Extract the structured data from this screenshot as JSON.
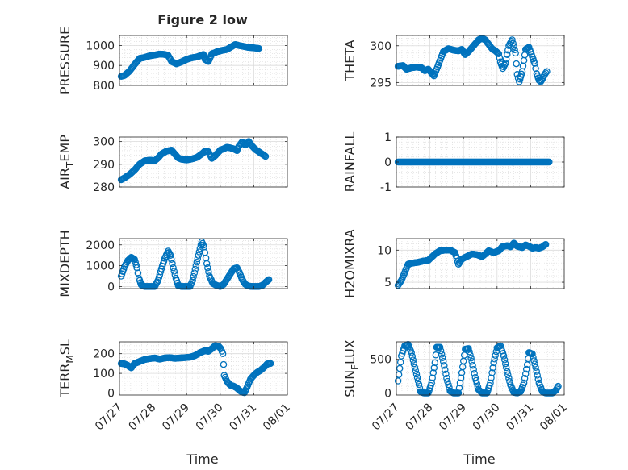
{
  "figure": {
    "title": "Figure 2 low",
    "xlabel": "Time"
  },
  "chart_data": [
    {
      "type": "scatter",
      "ylabel": "PRESSURE",
      "ylim": [
        800,
        1050
      ],
      "yticks": [
        {
          "v": 800,
          "label": "800"
        },
        {
          "v": 900,
          "label": "900"
        },
        {
          "v": 1000,
          "label": "1000"
        }
      ],
      "xlim": [
        0,
        5
      ],
      "xticks": [
        "07/27",
        "07/28",
        "07/29",
        "07/30",
        "07/31",
        "08/01"
      ],
      "grid": "on",
      "key": [
        [
          0.05,
          845
        ],
        [
          0.15,
          850
        ],
        [
          0.3,
          872
        ],
        [
          0.45,
          905
        ],
        [
          0.6,
          935
        ],
        [
          0.75,
          940
        ],
        [
          0.9,
          948
        ],
        [
          1.05,
          952
        ],
        [
          1.2,
          957
        ],
        [
          1.35,
          955
        ],
        [
          1.45,
          950
        ],
        [
          1.55,
          920
        ],
        [
          1.7,
          908
        ],
        [
          1.85,
          918
        ],
        [
          2.0,
          930
        ],
        [
          2.15,
          938
        ],
        [
          2.3,
          942
        ],
        [
          2.4,
          948
        ],
        [
          2.5,
          955
        ],
        [
          2.55,
          930
        ],
        [
          2.65,
          920
        ],
        [
          2.75,
          958
        ],
        [
          2.9,
          968
        ],
        [
          3.05,
          975
        ],
        [
          3.2,
          980
        ],
        [
          3.3,
          990
        ],
        [
          3.45,
          1005
        ],
        [
          3.55,
          1000
        ],
        [
          3.7,
          995
        ],
        [
          3.85,
          990
        ],
        [
          4.0,
          988
        ],
        [
          4.15,
          985
        ]
      ]
    },
    {
      "type": "scatter",
      "ylabel": "THETA",
      "ylim": [
        294.6,
        301.4
      ],
      "yticks": [
        {
          "v": 295,
          "label": "295"
        },
        {
          "v": 300,
          "label": "300"
        }
      ],
      "xlim": [
        0,
        5
      ],
      "xticks": [
        "07/27",
        "07/28",
        "07/29",
        "07/30",
        "07/31",
        "08/01"
      ],
      "grid": "on",
      "key": [
        [
          0.05,
          297.2
        ],
        [
          0.2,
          297.3
        ],
        [
          0.3,
          296.8
        ],
        [
          0.45,
          297.0
        ],
        [
          0.6,
          297.1
        ],
        [
          0.75,
          297.0
        ],
        [
          0.85,
          296.6
        ],
        [
          0.95,
          296.8
        ],
        [
          1.05,
          296.3
        ],
        [
          1.12,
          295.9
        ],
        [
          1.2,
          296.8
        ],
        [
          1.3,
          298.0
        ],
        [
          1.4,
          299.2
        ],
        [
          1.55,
          299.6
        ],
        [
          1.7,
          299.4
        ],
        [
          1.85,
          299.3
        ],
        [
          1.95,
          299.5
        ],
        [
          2.05,
          298.8
        ],
        [
          2.15,
          299.2
        ],
        [
          2.3,
          300.0
        ],
        [
          2.45,
          300.8
        ],
        [
          2.55,
          301.0
        ],
        [
          2.65,
          300.8
        ],
        [
          2.75,
          300.2
        ],
        [
          2.85,
          299.6
        ],
        [
          2.95,
          299.3
        ],
        [
          3.05,
          298.9
        ],
        [
          3.1,
          297.8
        ],
        [
          3.17,
          296.9
        ],
        [
          3.25,
          297.6
        ],
        [
          3.35,
          300.0
        ],
        [
          3.45,
          300.8
        ],
        [
          3.55,
          299.0
        ],
        [
          3.6,
          296.1
        ],
        [
          3.66,
          295.1
        ],
        [
          3.75,
          296.5
        ],
        [
          3.85,
          299.5
        ],
        [
          3.95,
          299.8
        ],
        [
          4.05,
          298.5
        ],
        [
          4.12,
          297.6
        ],
        [
          4.18,
          296.2
        ],
        [
          4.25,
          295.3
        ],
        [
          4.3,
          295.1
        ],
        [
          4.35,
          295.5
        ],
        [
          4.42,
          296.1
        ],
        [
          4.48,
          296.5
        ]
      ]
    },
    {
      "type": "scatter",
      "ylabel": "AIR_TEMP",
      "ylabel_main": "AIR",
      "ylabel_sub": "T",
      "ylabel_rest": "EMP",
      "ylim": [
        280,
        302
      ],
      "yticks": [
        {
          "v": 280,
          "label": "280"
        },
        {
          "v": 290,
          "label": "290"
        },
        {
          "v": 300,
          "label": "300"
        }
      ],
      "xlim": [
        0,
        5
      ],
      "xticks": [
        "07/27",
        "07/28",
        "07/29",
        "07/30",
        "07/31",
        "08/01"
      ],
      "grid": "on",
      "key": [
        [
          0.05,
          283.2
        ],
        [
          0.15,
          284
        ],
        [
          0.3,
          285.5
        ],
        [
          0.45,
          287.5
        ],
        [
          0.6,
          290
        ],
        [
          0.75,
          291.5
        ],
        [
          0.9,
          291.8
        ],
        [
          1.05,
          291.6
        ],
        [
          1.15,
          292.8
        ],
        [
          1.25,
          294.5
        ],
        [
          1.4,
          295.8
        ],
        [
          1.55,
          296.2
        ],
        [
          1.65,
          294.5
        ],
        [
          1.75,
          292.8
        ],
        [
          1.85,
          292.2
        ],
        [
          2.0,
          291.9
        ],
        [
          2.15,
          292.3
        ],
        [
          2.3,
          293
        ],
        [
          2.45,
          294.5
        ],
        [
          2.55,
          295.9
        ],
        [
          2.65,
          295.5
        ],
        [
          2.75,
          292.6
        ],
        [
          2.85,
          293.8
        ],
        [
          3.0,
          296.2
        ],
        [
          3.1,
          296.8
        ],
        [
          3.2,
          297.5
        ],
        [
          3.3,
          297.2
        ],
        [
          3.4,
          296.8
        ],
        [
          3.5,
          296
        ],
        [
          3.55,
          297.8
        ],
        [
          3.65,
          299.8
        ],
        [
          3.75,
          298.5
        ],
        [
          3.85,
          300
        ],
        [
          3.95,
          298
        ],
        [
          4.05,
          296.5
        ],
        [
          4.15,
          295.5
        ],
        [
          4.25,
          294.5
        ],
        [
          4.35,
          293.5
        ]
      ]
    },
    {
      "type": "scatter",
      "ylabel": "RAINFALL",
      "ylim": [
        -1,
        1
      ],
      "yticks": [
        {
          "v": -1,
          "label": "-1"
        },
        {
          "v": 0,
          "label": "0"
        },
        {
          "v": 1,
          "label": "1"
        }
      ],
      "xlim": [
        0,
        5
      ],
      "xticks": [
        "07/27",
        "07/28",
        "07/29",
        "07/30",
        "07/31",
        "08/01"
      ],
      "grid": "on",
      "key": [
        [
          0.05,
          0
        ],
        [
          4.55,
          0
        ]
      ]
    },
    {
      "type": "scatter",
      "ylabel": "MIXDEPTH",
      "ylim": [
        -100,
        2300
      ],
      "yticks": [
        {
          "v": 0,
          "label": "0"
        },
        {
          "v": 1000,
          "label": "1000"
        },
        {
          "v": 2000,
          "label": "2000"
        }
      ],
      "xlim": [
        0,
        5
      ],
      "xticks": [
        "07/27",
        "07/28",
        "07/29",
        "07/30",
        "07/31",
        "08/01"
      ],
      "grid": "on",
      "key": [
        [
          0.05,
          500
        ],
        [
          0.15,
          950
        ],
        [
          0.25,
          1250
        ],
        [
          0.35,
          1400
        ],
        [
          0.45,
          1300
        ],
        [
          0.52,
          900
        ],
        [
          0.58,
          400
        ],
        [
          0.65,
          80
        ],
        [
          0.75,
          0
        ],
        [
          0.9,
          0
        ],
        [
          1.05,
          0
        ],
        [
          1.15,
          300
        ],
        [
          1.25,
          850
        ],
        [
          1.35,
          1350
        ],
        [
          1.45,
          1700
        ],
        [
          1.52,
          1500
        ],
        [
          1.6,
          900
        ],
        [
          1.68,
          400
        ],
        [
          1.75,
          50
        ],
        [
          1.85,
          0
        ],
        [
          2.0,
          0
        ],
        [
          2.1,
          0
        ],
        [
          2.18,
          300
        ],
        [
          2.28,
          1000
        ],
        [
          2.35,
          1500
        ],
        [
          2.45,
          2150
        ],
        [
          2.52,
          1900
        ],
        [
          2.6,
          1100
        ],
        [
          2.68,
          500
        ],
        [
          2.78,
          150
        ],
        [
          2.9,
          50
        ],
        [
          3.0,
          0
        ],
        [
          3.1,
          100
        ],
        [
          3.2,
          350
        ],
        [
          3.3,
          600
        ],
        [
          3.4,
          850
        ],
        [
          3.5,
          900
        ],
        [
          3.58,
          650
        ],
        [
          3.65,
          350
        ],
        [
          3.75,
          100
        ],
        [
          3.85,
          20
        ],
        [
          3.95,
          0
        ],
        [
          4.05,
          0
        ],
        [
          4.15,
          0
        ],
        [
          4.25,
          50
        ],
        [
          4.35,
          200
        ],
        [
          4.45,
          330
        ]
      ]
    },
    {
      "type": "scatter",
      "ylabel": "H2OMIXRA",
      "ylim": [
        4,
        11.8
      ],
      "yticks": [
        {
          "v": 5,
          "label": "5"
        },
        {
          "v": 10,
          "label": "10"
        }
      ],
      "xlim": [
        0,
        5
      ],
      "xticks": [
        "07/27",
        "07/28",
        "07/29",
        "07/30",
        "07/31",
        "08/01"
      ],
      "grid": "on",
      "key": [
        [
          0.05,
          4.5
        ],
        [
          0.15,
          5.3
        ],
        [
          0.25,
          6.5
        ],
        [
          0.35,
          7.8
        ],
        [
          0.5,
          8
        ],
        [
          0.65,
          8.1
        ],
        [
          0.8,
          8.3
        ],
        [
          0.95,
          8.4
        ],
        [
          1.05,
          8.9
        ],
        [
          1.15,
          9.4
        ],
        [
          1.3,
          9.9
        ],
        [
          1.45,
          10.0
        ],
        [
          1.6,
          10.0
        ],
        [
          1.75,
          9.6
        ],
        [
          1.85,
          7.8
        ],
        [
          1.95,
          8.6
        ],
        [
          2.1,
          9.0
        ],
        [
          2.25,
          9.4
        ],
        [
          2.4,
          9.3
        ],
        [
          2.55,
          9.0
        ],
        [
          2.65,
          9.4
        ],
        [
          2.75,
          9.9
        ],
        [
          2.9,
          9.6
        ],
        [
          3.05,
          9.9
        ],
        [
          3.15,
          10.5
        ],
        [
          3.3,
          10.7
        ],
        [
          3.4,
          10.5
        ],
        [
          3.5,
          11.1
        ],
        [
          3.6,
          10.6
        ],
        [
          3.75,
          10.4
        ],
        [
          3.85,
          10.8
        ],
        [
          3.95,
          10.6
        ],
        [
          4.05,
          10.3
        ],
        [
          4.15,
          10.4
        ],
        [
          4.25,
          10.3
        ],
        [
          4.35,
          10.5
        ],
        [
          4.45,
          10.9
        ]
      ]
    },
    {
      "type": "scatter",
      "ylabel": "TERR_MSL",
      "ylabel_main": "TERR",
      "ylabel_sub": "M",
      "ylabel_rest": "SL",
      "ylim": [
        -10,
        260
      ],
      "yticks": [
        {
          "v": 0,
          "label": "0"
        },
        {
          "v": 100,
          "label": "100"
        },
        {
          "v": 200,
          "label": "200"
        }
      ],
      "xlim": [
        0,
        5
      ],
      "xticks": [
        "07/27",
        "07/28",
        "07/29",
        "07/30",
        "07/31",
        "08/01"
      ],
      "grid": "on",
      "key": [
        [
          0.05,
          150
        ],
        [
          0.15,
          148
        ],
        [
          0.25,
          140
        ],
        [
          0.35,
          128
        ],
        [
          0.45,
          150
        ],
        [
          0.6,
          160
        ],
        [
          0.75,
          170
        ],
        [
          0.9,
          175
        ],
        [
          1.05,
          178
        ],
        [
          1.2,
          172
        ],
        [
          1.35,
          178
        ],
        [
          1.5,
          180
        ],
        [
          1.65,
          176
        ],
        [
          1.8,
          178
        ],
        [
          1.95,
          180
        ],
        [
          2.1,
          182
        ],
        [
          2.25,
          190
        ],
        [
          2.4,
          205
        ],
        [
          2.55,
          215
        ],
        [
          2.65,
          212
        ],
        [
          2.75,
          225
        ],
        [
          2.85,
          240
        ],
        [
          2.95,
          238
        ],
        [
          3.02,
          225
        ],
        [
          3.08,
          200
        ],
        [
          3.12,
          90
        ],
        [
          3.2,
          60
        ],
        [
          3.3,
          40
        ],
        [
          3.4,
          35
        ],
        [
          3.5,
          25
        ],
        [
          3.6,
          10
        ],
        [
          3.65,
          5
        ],
        [
          3.72,
          2
        ],
        [
          3.8,
          30
        ],
        [
          3.9,
          70
        ],
        [
          4.0,
          90
        ],
        [
          4.1,
          105
        ],
        [
          4.2,
          115
        ],
        [
          4.3,
          130
        ],
        [
          4.4,
          148
        ],
        [
          4.5,
          150
        ]
      ]
    },
    {
      "type": "scatter",
      "ylabel": "SUN_FLUX",
      "ylabel_main": "SUN",
      "ylabel_sub": "F",
      "ylabel_rest": "LUX",
      "ylim": [
        -30,
        760
      ],
      "yticks": [
        {
          "v": 0,
          "label": "0"
        },
        {
          "v": 500,
          "label": "500"
        }
      ],
      "xlim": [
        0,
        5
      ],
      "xticks": [
        "07/27",
        "07/28",
        "07/29",
        "07/30",
        "07/31",
        "08/01"
      ],
      "grid": "on",
      "key": [
        [
          0.05,
          180
        ],
        [
          0.15,
          550
        ],
        [
          0.25,
          700
        ],
        [
          0.35,
          720
        ],
        [
          0.45,
          600
        ],
        [
          0.55,
          380
        ],
        [
          0.65,
          180
        ],
        [
          0.72,
          20
        ],
        [
          0.82,
          0
        ],
        [
          0.95,
          0
        ],
        [
          1.05,
          150
        ],
        [
          1.15,
          450
        ],
        [
          1.2,
          680
        ],
        [
          1.3,
          680
        ],
        [
          1.4,
          470
        ],
        [
          1.5,
          220
        ],
        [
          1.6,
          30
        ],
        [
          1.7,
          0
        ],
        [
          1.85,
          0
        ],
        [
          1.95,
          300
        ],
        [
          2.05,
          650
        ],
        [
          2.15,
          660
        ],
        [
          2.25,
          470
        ],
        [
          2.35,
          230
        ],
        [
          2.45,
          50
        ],
        [
          2.55,
          0
        ],
        [
          2.7,
          0
        ],
        [
          2.8,
          150
        ],
        [
          2.9,
          450
        ],
        [
          3.0,
          670
        ],
        [
          3.1,
          700
        ],
        [
          3.2,
          550
        ],
        [
          3.3,
          320
        ],
        [
          3.4,
          120
        ],
        [
          3.5,
          10
        ],
        [
          3.6,
          0
        ],
        [
          3.7,
          20
        ],
        [
          3.8,
          150
        ],
        [
          3.9,
          420
        ],
        [
          3.95,
          600
        ],
        [
          4.05,
          580
        ],
        [
          4.15,
          380
        ],
        [
          4.25,
          150
        ],
        [
          4.35,
          20
        ],
        [
          4.45,
          0
        ],
        [
          4.55,
          0
        ],
        [
          4.65,
          0
        ],
        [
          4.75,
          40
        ],
        [
          4.82,
          100
        ]
      ]
    }
  ]
}
